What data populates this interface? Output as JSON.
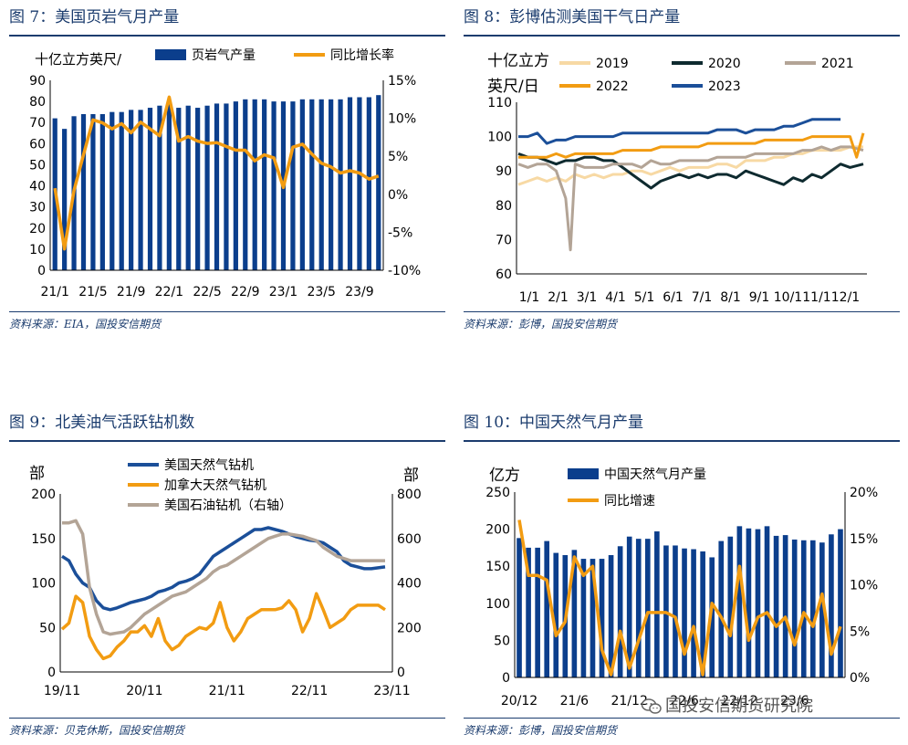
{
  "chart_data": [
    {
      "type": "bar+line",
      "figure_title": "图 7：美国页岩气月产量",
      "source": "资料来源：EIA，国投安信期货",
      "ylabel_left": "十亿立方英尺/",
      "ylim_left": [
        0,
        90
      ],
      "yticks_left": [
        "0",
        "10",
        "20",
        "30",
        "40",
        "50",
        "60",
        "70",
        "80",
        "90"
      ],
      "ylim_right": [
        -10,
        15
      ],
      "yticks_right": [
        "-10%",
        "-5%",
        "0%",
        "5%",
        "10%",
        "15%"
      ],
      "xtick_labels": [
        "21/1",
        "21/5",
        "21/9",
        "22/1",
        "22/5",
        "22/9",
        "23/1",
        "23/5",
        "23/9"
      ],
      "xtick_index": [
        0,
        4,
        8,
        12,
        16,
        20,
        24,
        28,
        32
      ],
      "series": [
        {
          "name": "页岩气产量",
          "kind": "bar",
          "axis": "left",
          "color": "#0b3e8c",
          "values": [
            72,
            67,
            73,
            74,
            74,
            74,
            75,
            75,
            76,
            76,
            77,
            78,
            79,
            77,
            78,
            77,
            78,
            79,
            79,
            80,
            81,
            81,
            81,
            80,
            80,
            80,
            81,
            81,
            81,
            81,
            81,
            82,
            82,
            82,
            83
          ]
        },
        {
          "name": "同比增长率",
          "kind": "line",
          "axis": "right",
          "color": "#f29c12",
          "values": [
            0.8,
            -7.2,
            0.5,
            5.2,
            9.8,
            9.4,
            8.6,
            9.3,
            8.1,
            9.5,
            8.6,
            7.7,
            12.8,
            7.0,
            7.6,
            7.0,
            6.7,
            6.8,
            6.3,
            5.8,
            5.8,
            4.4,
            5.2,
            4.8,
            0.9,
            6.2,
            6.6,
            5.3,
            4.1,
            3.6,
            2.8,
            3.1,
            2.8,
            2.0,
            2.4
          ]
        }
      ]
    },
    {
      "type": "line",
      "figure_title": "图 8：彭博估测美国干气日产量",
      "source": "资料来源：彭博，国投安信期货",
      "ylabel_line1": "十亿立方",
      "ylabel_line2": "英尺/日",
      "ylim": [
        60,
        110
      ],
      "yticks": [
        "60",
        "70",
        "80",
        "90",
        "100",
        "110"
      ],
      "xtick_labels": [
        "1/1",
        "2/1",
        "3/1",
        "4/1",
        "5/1",
        "6/1",
        "7/1",
        "8/1",
        "9/1",
        "10/1",
        "11/1",
        "12/1"
      ],
      "series": [
        {
          "name": "2019",
          "color": "#f7d9a4",
          "x": [
            0,
            10,
            20,
            30,
            40,
            50,
            60,
            70,
            80,
            90,
            100,
            110,
            120,
            130,
            140,
            150,
            160,
            170,
            180,
            190,
            200,
            210,
            220,
            230,
            240,
            250,
            260,
            270,
            280,
            290,
            300,
            310,
            320,
            330,
            340,
            350,
            364
          ],
          "y": [
            86,
            87,
            88,
            87,
            88,
            87,
            89,
            88,
            89,
            88,
            89,
            89,
            90,
            90,
            89,
            90,
            91,
            90,
            91,
            91,
            91,
            92,
            92,
            91,
            93,
            93,
            93,
            94,
            94,
            95,
            95,
            96,
            96,
            96,
            96,
            97,
            97
          ]
        },
        {
          "name": "2020",
          "color": "#0e2a2f",
          "x": [
            0,
            10,
            20,
            30,
            40,
            50,
            60,
            70,
            80,
            90,
            100,
            110,
            120,
            130,
            140,
            150,
            160,
            170,
            180,
            190,
            200,
            210,
            220,
            230,
            240,
            250,
            260,
            270,
            280,
            290,
            300,
            310,
            320,
            330,
            340,
            350,
            364
          ],
          "y": [
            95,
            94,
            94,
            93,
            92,
            93,
            93,
            94,
            94,
            93,
            93,
            91,
            89,
            87,
            85,
            87,
            88,
            89,
            88,
            89,
            88,
            89,
            89,
            88,
            90,
            89,
            88,
            87,
            86,
            88,
            87,
            89,
            88,
            90,
            92,
            91,
            92
          ]
        },
        {
          "name": "2021",
          "color": "#b3a496",
          "x": [
            0,
            10,
            20,
            30,
            40,
            50,
            55,
            60,
            70,
            80,
            90,
            100,
            110,
            120,
            130,
            140,
            150,
            160,
            170,
            180,
            190,
            200,
            210,
            220,
            230,
            240,
            250,
            260,
            270,
            280,
            290,
            300,
            310,
            320,
            330,
            340,
            350,
            364
          ],
          "y": [
            92,
            91,
            92,
            92,
            90,
            82,
            67,
            92,
            91,
            91,
            91,
            92,
            92,
            92,
            91,
            93,
            92,
            92,
            93,
            93,
            93,
            93,
            94,
            94,
            94,
            94,
            95,
            95,
            95,
            95,
            95,
            96,
            96,
            97,
            96,
            97,
            97,
            96
          ]
        },
        {
          "name": "2022",
          "color": "#f29c12",
          "x": [
            0,
            10,
            20,
            30,
            40,
            50,
            60,
            70,
            80,
            90,
            100,
            110,
            120,
            130,
            140,
            150,
            160,
            170,
            180,
            190,
            200,
            210,
            220,
            230,
            240,
            250,
            260,
            270,
            280,
            290,
            300,
            310,
            320,
            330,
            340,
            350,
            357,
            364
          ],
          "y": [
            94,
            94,
            94,
            94,
            95,
            94,
            95,
            95,
            95,
            95,
            95,
            96,
            96,
            96,
            96,
            97,
            97,
            97,
            97,
            97,
            98,
            98,
            98,
            98,
            98,
            98,
            99,
            99,
            99,
            99,
            99,
            100,
            100,
            100,
            100,
            100,
            94,
            101
          ]
        },
        {
          "name": "2023",
          "color": "#1b4f99",
          "x": [
            0,
            10,
            20,
            30,
            40,
            50,
            60,
            70,
            80,
            90,
            100,
            110,
            120,
            130,
            140,
            150,
            160,
            170,
            180,
            190,
            200,
            210,
            220,
            230,
            240,
            250,
            260,
            270,
            280,
            290,
            300,
            310,
            320,
            330,
            340
          ],
          "y": [
            100,
            100,
            101,
            98,
            99,
            99,
            100,
            100,
            100,
            100,
            100,
            101,
            101,
            101,
            101,
            101,
            101,
            101,
            101,
            101,
            101,
            102,
            102,
            102,
            101,
            102,
            102,
            102,
            103,
            103,
            104,
            105,
            105,
            105,
            105
          ]
        }
      ]
    },
    {
      "type": "line",
      "figure_title": "图 9：北美油气活跃钻机数",
      "source": "资料来源：贝克休斯，国投安信期货",
      "ylabel_left": "部",
      "ylabel_right": "部",
      "ylim_left": [
        0,
        200
      ],
      "yticks_left": [
        "0",
        "50",
        "100",
        "150",
        "200"
      ],
      "ylim_right": [
        0,
        800
      ],
      "yticks_right": [
        "0",
        "200",
        "400",
        "600",
        "800"
      ],
      "xtick_labels": [
        "19/11",
        "20/11",
        "21/11",
        "22/11",
        "23/11"
      ],
      "xtick_index": [
        0,
        12,
        24,
        36,
        48
      ],
      "series": [
        {
          "name": "美国天然气钻机",
          "axis": "left",
          "color": "#1b4f99",
          "values": [
            130,
            125,
            110,
            100,
            95,
            80,
            72,
            70,
            72,
            75,
            78,
            80,
            82,
            85,
            90,
            92,
            95,
            100,
            102,
            105,
            110,
            120,
            130,
            135,
            140,
            145,
            150,
            155,
            160,
            160,
            162,
            160,
            158,
            155,
            152,
            150,
            148,
            147,
            145,
            140,
            135,
            125,
            120,
            118,
            116,
            116,
            117,
            118
          ]
        },
        {
          "name": "加拿大天然气钻机",
          "axis": "left",
          "color": "#f29c12",
          "values": [
            48,
            55,
            85,
            78,
            40,
            25,
            15,
            18,
            28,
            35,
            45,
            45,
            52,
            40,
            60,
            35,
            25,
            30,
            40,
            45,
            50,
            48,
            55,
            78,
            50,
            35,
            45,
            60,
            65,
            70,
            70,
            70,
            72,
            80,
            70,
            45,
            60,
            88,
            70,
            50,
            55,
            60,
            70,
            75,
            75,
            75,
            75,
            70
          ]
        },
        {
          "name": "美国石油钻机（右轴）",
          "axis": "right",
          "color": "#b3a496",
          "values": [
            670,
            670,
            680,
            620,
            380,
            260,
            180,
            170,
            175,
            180,
            200,
            230,
            260,
            280,
            300,
            320,
            340,
            350,
            360,
            380,
            400,
            420,
            450,
            470,
            480,
            500,
            520,
            540,
            560,
            580,
            600,
            610,
            620,
            620,
            615,
            610,
            600,
            590,
            560,
            540,
            520,
            510,
            500,
            500,
            500,
            500,
            500,
            500
          ]
        }
      ]
    },
    {
      "type": "bar+line",
      "figure_title": "图 10：中国天然气月产量",
      "source": "资料来源：彭博，国投安信期货",
      "ylabel_left": "亿方",
      "ylim_left": [
        0,
        250
      ],
      "yticks_left": [
        "0",
        "50",
        "100",
        "150",
        "200",
        "250"
      ],
      "ylim_right": [
        0,
        20
      ],
      "yticks_right": [
        "0%",
        "5%",
        "10%",
        "15%",
        "20%"
      ],
      "xtick_labels": [
        "20/12",
        "21/6",
        "21/12",
        "22/6",
        "22/12",
        "23/6"
      ],
      "xtick_index": [
        0,
        6,
        12,
        18,
        24,
        30
      ],
      "series": [
        {
          "name": "中国天然气月产量",
          "kind": "bar",
          "axis": "left",
          "color": "#0b3e8c",
          "values": [
            188,
            175,
            175,
            184,
            168,
            165,
            172,
            160,
            160,
            160,
            165,
            177,
            190,
            187,
            187,
            197,
            178,
            178,
            174,
            173,
            170,
            162,
            184,
            190,
            204,
            201,
            200,
            204,
            191,
            192,
            186,
            185,
            185,
            182,
            193,
            200
          ]
        },
        {
          "name": "同比增速",
          "kind": "line",
          "axis": "right",
          "color": "#f29c12",
          "values": [
            17,
            11,
            11,
            10.5,
            4.5,
            6,
            13,
            11,
            12,
            3,
            0.3,
            5,
            1,
            4,
            7,
            7,
            7,
            6.5,
            2.5,
            5.5,
            0.3,
            8,
            6.5,
            4.5,
            12,
            4,
            6.5,
            7,
            5.5,
            6.5,
            3.5,
            7,
            5.5,
            9,
            2.5,
            5.5
          ]
        }
      ]
    }
  ],
  "watermark": "国投安信期货研究院",
  "watermark_icon": "wechat-icon"
}
